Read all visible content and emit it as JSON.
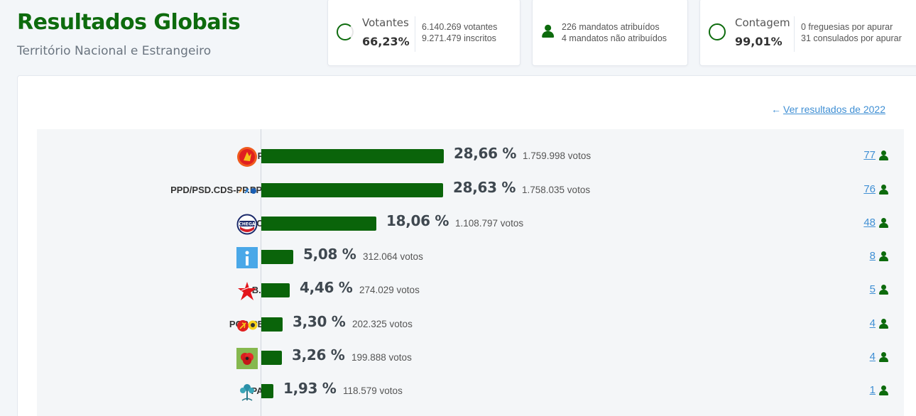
{
  "header": {
    "title": "Resultados Globais",
    "subtitle": "Território Nacional e Estrangeiro"
  },
  "cards": {
    "votantes": {
      "label": "Votantes",
      "percent": "66,23%",
      "line1": "6.140.269 votantes",
      "line2": "9.271.479 inscritos"
    },
    "mandatos": {
      "line1": "226 mandatos atribuídos",
      "line2": "4 mandatos não atribuídos"
    },
    "contagem": {
      "label": "Contagem",
      "percent": "99,01%",
      "line1": "0 freguesias por apurar",
      "line2": "31 consulados por apurar"
    }
  },
  "previous_link": "Ver resultados de 2022",
  "colors": {
    "brand_green": "#0d6b0d",
    "bar_green": "#0a640a",
    "link_blue": "#3f8fd4"
  },
  "chart_data": {
    "type": "bar",
    "categories": [
      "PS",
      "PPD/PSD.CDS-PP.PPM",
      "CH",
      "IL",
      "B.E.",
      "PCP-PEV",
      "L",
      "PAN"
    ],
    "values": [
      28.66,
      28.63,
      18.06,
      5.08,
      4.46,
      3.3,
      3.26,
      1.93
    ],
    "value_labels": [
      "28,66 %",
      "28,63 %",
      "18,06 %",
      "5,08 %",
      "4,46 %",
      "3,30 %",
      "3,26 %",
      "1,93 %"
    ],
    "votes": [
      "1.759.998 votos",
      "1.758.035 votos",
      "1.108.797 votos",
      "312.064 votos",
      "274.029 votos",
      "202.325 votos",
      "199.888 votos",
      "118.579 votos"
    ],
    "seats": [
      "77",
      "76",
      "48",
      "8",
      "5",
      "4",
      "4",
      "1"
    ]
  },
  "parties": [
    {
      "name": "PS",
      "logo": "ps-logo-icon"
    },
    {
      "name": "PPD/PSD.CDS-PP.PPM",
      "logo": "ad-logo-icon"
    },
    {
      "name": "CH",
      "logo": "chega-logo-icon"
    },
    {
      "name": "IL",
      "logo": "il-logo-icon"
    },
    {
      "name": "B.E.",
      "logo": "be-star-icon"
    },
    {
      "name": "PCP-PEV",
      "logo": "cdu-logo-icon"
    },
    {
      "name": "L",
      "logo": "livre-poppy-icon"
    },
    {
      "name": "PAN",
      "logo": "pan-tree-icon"
    }
  ]
}
